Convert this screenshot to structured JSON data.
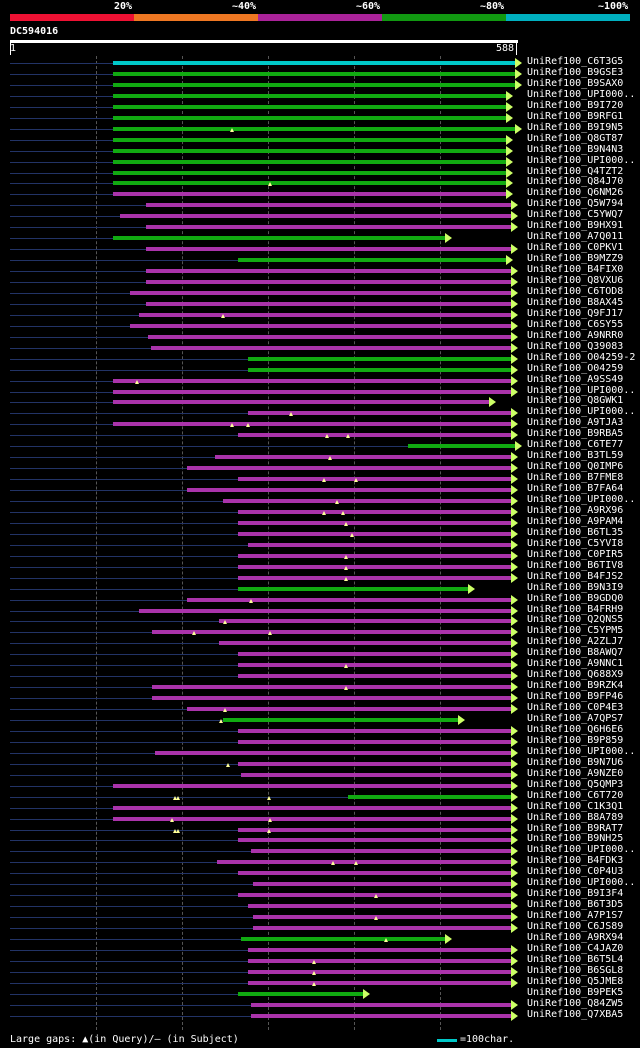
{
  "scale": {
    "bands": [
      {
        "label": "20%",
        "color": "#ee1133"
      },
      {
        "label": "~40%",
        "color": "#ee7722"
      },
      {
        "label": "~60%",
        "color": "#aa2299"
      },
      {
        "label": "~80%",
        "color": "#119911"
      },
      {
        "label": "~100%",
        "color": "#00b0c0"
      }
    ]
  },
  "query": {
    "name": "DC594016",
    "start": "1",
    "end": "588",
    "length": 588
  },
  "legend": {
    "text": "Large gaps: ▲(in Query)/– (in Subject)",
    "scale_text": "=100char.",
    "color": "#00c8c8"
  },
  "colors": {
    "cyan": "#00c8c8",
    "green": "#11aa11",
    "magenta": "#aa33aa",
    "base": "#223366",
    "arrow": "#ccff66",
    "gap": "#ffff99"
  },
  "hits": [
    {
      "label": "UniRef100_C6T3G5",
      "start": 120,
      "end": 588,
      "color": "cyan",
      "gaps": []
    },
    {
      "label": "UniRef100_B9GSE3",
      "start": 120,
      "end": 588,
      "color": "green",
      "gaps": []
    },
    {
      "label": "UniRef100_B9SAX0",
      "start": 120,
      "end": 588,
      "color": "green",
      "gaps": []
    },
    {
      "label": "UniRef100_UPI000..",
      "start": 120,
      "end": 578,
      "color": "green",
      "gaps": []
    },
    {
      "label": "UniRef100_B9I720",
      "start": 120,
      "end": 578,
      "color": "green",
      "gaps": []
    },
    {
      "label": "UniRef100_B9RFG1",
      "start": 120,
      "end": 578,
      "color": "green",
      "gaps": []
    },
    {
      "label": "UniRef100_B9I9N5",
      "start": 120,
      "end": 588,
      "color": "green",
      "gaps": [
        258
      ]
    },
    {
      "label": "UniRef100_Q8GT87",
      "start": 120,
      "end": 578,
      "color": "green",
      "gaps": []
    },
    {
      "label": "UniRef100_B9N4N3",
      "start": 120,
      "end": 578,
      "color": "green",
      "gaps": []
    },
    {
      "label": "UniRef100_UPI000..",
      "start": 120,
      "end": 578,
      "color": "green",
      "gaps": []
    },
    {
      "label": "UniRef100_Q4TZT2",
      "start": 120,
      "end": 578,
      "color": "green",
      "gaps": []
    },
    {
      "label": "UniRef100_Q84J70",
      "start": 120,
      "end": 578,
      "color": "green",
      "gaps": [
        302
      ]
    },
    {
      "label": "UniRef100_Q6NM26",
      "start": 120,
      "end": 578,
      "color": "magenta",
      "gaps": []
    },
    {
      "label": "UniRef100_Q5W794",
      "start": 158,
      "end": 583,
      "color": "magenta",
      "gaps": []
    },
    {
      "label": "UniRef100_C5YWQ7",
      "start": 128,
      "end": 583,
      "color": "magenta",
      "gaps": []
    },
    {
      "label": "UniRef100_B9HX91",
      "start": 158,
      "end": 583,
      "color": "magenta",
      "gaps": []
    },
    {
      "label": "UniRef100_A7Q011",
      "start": 120,
      "end": 507,
      "color": "green",
      "gaps": []
    },
    {
      "label": "UniRef100_C0PKV1",
      "start": 158,
      "end": 583,
      "color": "magenta",
      "gaps": []
    },
    {
      "label": "UniRef100_B9MZZ9",
      "start": 265,
      "end": 578,
      "color": "green",
      "gaps": []
    },
    {
      "label": "UniRef100_B4FIX0",
      "start": 158,
      "end": 583,
      "color": "magenta",
      "gaps": []
    },
    {
      "label": "UniRef100_Q8VXU6",
      "start": 158,
      "end": 583,
      "color": "magenta",
      "gaps": []
    },
    {
      "label": "UniRef100_C6TOD8",
      "start": 140,
      "end": 583,
      "color": "magenta",
      "gaps": []
    },
    {
      "label": "UniRef100_B8AX45",
      "start": 158,
      "end": 583,
      "color": "magenta",
      "gaps": []
    },
    {
      "label": "UniRef100_Q9FJ17",
      "start": 150,
      "end": 583,
      "color": "magenta",
      "gaps": [
        247
      ]
    },
    {
      "label": "UniRef100_C6SY55",
      "start": 140,
      "end": 583,
      "color": "magenta",
      "gaps": []
    },
    {
      "label": "UniRef100_A9NRR0",
      "start": 160,
      "end": 583,
      "color": "magenta",
      "gaps": []
    },
    {
      "label": "UniRef100_Q39083",
      "start": 164,
      "end": 583,
      "color": "magenta",
      "gaps": []
    },
    {
      "label": "UniRef100_O04259-2",
      "start": 276,
      "end": 583,
      "color": "green",
      "gaps": []
    },
    {
      "label": "UniRef100_O04259",
      "start": 276,
      "end": 583,
      "color": "green",
      "gaps": []
    },
    {
      "label": "UniRef100_A9SS49",
      "start": 120,
      "end": 583,
      "color": "magenta",
      "gaps": [
        148
      ]
    },
    {
      "label": "UniRef100_UPI000..",
      "start": 120,
      "end": 583,
      "color": "magenta",
      "gaps": []
    },
    {
      "label": "UniRef100_Q8GWK1",
      "start": 120,
      "end": 558,
      "color": "magenta",
      "gaps": []
    },
    {
      "label": "UniRef100_UPI000..",
      "start": 276,
      "end": 583,
      "color": "magenta",
      "gaps": [
        326
      ]
    },
    {
      "label": "UniRef100_A9TJA3",
      "start": 120,
      "end": 583,
      "color": "magenta",
      "gaps": [
        258,
        276
      ]
    },
    {
      "label": "UniRef100_B9RBA5",
      "start": 265,
      "end": 583,
      "color": "magenta",
      "gaps": [
        368,
        393
      ]
    },
    {
      "label": "UniRef100_C6TE77",
      "start": 463,
      "end": 588,
      "color": "green",
      "gaps": []
    },
    {
      "label": "UniRef100_B3TL59",
      "start": 238,
      "end": 583,
      "color": "magenta",
      "gaps": [
        372
      ]
    },
    {
      "label": "UniRef100_Q0IMP6",
      "start": 206,
      "end": 583,
      "color": "magenta",
      "gaps": []
    },
    {
      "label": "UniRef100_B7FME8",
      "start": 265,
      "end": 583,
      "color": "magenta",
      "gaps": [
        365,
        402
      ]
    },
    {
      "label": "UniRef100_B7FA64",
      "start": 206,
      "end": 583,
      "color": "magenta",
      "gaps": []
    },
    {
      "label": "UniRef100_UPI000..",
      "start": 247,
      "end": 583,
      "color": "magenta",
      "gaps": [
        380
      ]
    },
    {
      "label": "UniRef100_A9RX96",
      "start": 265,
      "end": 583,
      "color": "magenta",
      "gaps": [
        365,
        387
      ]
    },
    {
      "label": "UniRef100_A9PAM4",
      "start": 265,
      "end": 583,
      "color": "magenta",
      "gaps": [
        390
      ]
    },
    {
      "label": "UniRef100_B6TL35",
      "start": 265,
      "end": 583,
      "color": "magenta",
      "gaps": [
        398
      ]
    },
    {
      "label": "UniRef100_C5YVI8",
      "start": 276,
      "end": 583,
      "color": "magenta",
      "gaps": []
    },
    {
      "label": "UniRef100_C0PIR5",
      "start": 265,
      "end": 583,
      "color": "magenta",
      "gaps": [
        390
      ]
    },
    {
      "label": "UniRef100_B6TIV8",
      "start": 265,
      "end": 583,
      "color": "magenta",
      "gaps": [
        390
      ]
    },
    {
      "label": "UniRef100_B4FJS2",
      "start": 265,
      "end": 583,
      "color": "magenta",
      "gaps": [
        390
      ]
    },
    {
      "label": "UniRef100_B9N3I9",
      "start": 265,
      "end": 533,
      "color": "green",
      "gaps": []
    },
    {
      "label": "UniRef100_B9GDQ0",
      "start": 206,
      "end": 583,
      "color": "magenta",
      "gaps": [
        280
      ]
    },
    {
      "label": "UniRef100_B4FRH9",
      "start": 150,
      "end": 583,
      "color": "magenta",
      "gaps": []
    },
    {
      "label": "UniRef100_Q2QNS5",
      "start": 243,
      "end": 583,
      "color": "magenta",
      "gaps": [
        250
      ]
    },
    {
      "label": "UniRef100_C5YPM5",
      "start": 165,
      "end": 583,
      "color": "magenta",
      "gaps": [
        214,
        302
      ]
    },
    {
      "label": "UniRef100_A2ZLJ7",
      "start": 243,
      "end": 583,
      "color": "magenta",
      "gaps": []
    },
    {
      "label": "UniRef100_B8AWQ7",
      "start": 265,
      "end": 583,
      "color": "magenta",
      "gaps": []
    },
    {
      "label": "UniRef100_A9NNC1",
      "start": 265,
      "end": 583,
      "color": "magenta",
      "gaps": [
        390
      ]
    },
    {
      "label": "UniRef100_Q688X9",
      "start": 265,
      "end": 583,
      "color": "magenta",
      "gaps": []
    },
    {
      "label": "UniRef100_B9RZK4",
      "start": 165,
      "end": 583,
      "color": "magenta",
      "gaps": [
        390
      ]
    },
    {
      "label": "UniRef100_B9FP46",
      "start": 165,
      "end": 583,
      "color": "magenta",
      "gaps": []
    },
    {
      "label": "UniRef100_C0P4E3",
      "start": 206,
      "end": 583,
      "color": "magenta",
      "gaps": [
        250
      ]
    },
    {
      "label": "UniRef100_A7QPS7",
      "start": 247,
      "end": 522,
      "color": "green",
      "gaps": [
        245
      ]
    },
    {
      "label": "UniRef100_Q6H6E6",
      "start": 265,
      "end": 583,
      "color": "magenta",
      "gaps": []
    },
    {
      "label": "UniRef100_B9P859",
      "start": 265,
      "end": 583,
      "color": "magenta",
      "gaps": []
    },
    {
      "label": "UniRef100_UPI000..",
      "start": 168,
      "end": 583,
      "color": "magenta",
      "gaps": []
    },
    {
      "label": "UniRef100_B9N7U6",
      "start": 265,
      "end": 583,
      "color": "magenta",
      "gaps": [
        253
      ]
    },
    {
      "label": "UniRef100_A9NZE0",
      "start": 268,
      "end": 583,
      "color": "magenta",
      "gaps": []
    },
    {
      "label": "UniRef100_Q5QMP3",
      "start": 120,
      "end": 583,
      "color": "magenta",
      "gaps": []
    },
    {
      "label": "UniRef100_C6T720",
      "start": 393,
      "end": 583,
      "color": "green",
      "gaps": [
        192,
        195,
        301
      ]
    },
    {
      "label": "UniRef100_C1K3Q1",
      "start": 120,
      "end": 583,
      "color": "magenta",
      "gaps": []
    },
    {
      "label": "UniRef100_B8A789",
      "start": 120,
      "end": 583,
      "color": "magenta",
      "gaps": [
        188,
        302
      ]
    },
    {
      "label": "UniRef100_B9RAT7",
      "start": 265,
      "end": 583,
      "color": "magenta",
      "gaps": [
        192,
        195,
        301
      ]
    },
    {
      "label": "UniRef100_B9NH25",
      "start": 265,
      "end": 583,
      "color": "magenta",
      "gaps": []
    },
    {
      "label": "UniRef100_UPI000..",
      "start": 280,
      "end": 583,
      "color": "magenta",
      "gaps": []
    },
    {
      "label": "UniRef100_B4FDK3",
      "start": 240,
      "end": 583,
      "color": "magenta",
      "gaps": [
        375,
        402
      ]
    },
    {
      "label": "UniRef100_C0P4U3",
      "start": 265,
      "end": 583,
      "color": "magenta",
      "gaps": []
    },
    {
      "label": "UniRef100_UPI000..",
      "start": 282,
      "end": 583,
      "color": "magenta",
      "gaps": []
    },
    {
      "label": "UniRef100_B9I3F4",
      "start": 265,
      "end": 583,
      "color": "magenta",
      "gaps": [
        425
      ]
    },
    {
      "label": "UniRef100_B6T3D5",
      "start": 276,
      "end": 583,
      "color": "magenta",
      "gaps": []
    },
    {
      "label": "UniRef100_A7P1S7",
      "start": 282,
      "end": 583,
      "color": "magenta",
      "gaps": [
        425
      ]
    },
    {
      "label": "UniRef100_C6JS89",
      "start": 282,
      "end": 583,
      "color": "magenta",
      "gaps": []
    },
    {
      "label": "UniRef100_A9RX94",
      "start": 268,
      "end": 507,
      "color": "green",
      "gaps": [
        437
      ]
    },
    {
      "label": "UniRef100_C4JAZ0",
      "start": 276,
      "end": 583,
      "color": "magenta",
      "gaps": []
    },
    {
      "label": "UniRef100_B6T5L4",
      "start": 276,
      "end": 583,
      "color": "magenta",
      "gaps": [
        353
      ]
    },
    {
      "label": "UniRef100_B6SGL8",
      "start": 276,
      "end": 583,
      "color": "magenta",
      "gaps": [
        353
      ]
    },
    {
      "label": "UniRef100_Q5JME8",
      "start": 276,
      "end": 583,
      "color": "magenta",
      "gaps": [
        353
      ]
    },
    {
      "label": "UniRef100_B9PEK5",
      "start": 265,
      "end": 411,
      "color": "green",
      "gaps": []
    },
    {
      "label": "UniRef100_Q84ZW5",
      "start": 280,
      "end": 583,
      "color": "magenta",
      "gaps": []
    },
    {
      "label": "UniRef100_Q7XBA5",
      "start": 280,
      "end": 583,
      "color": "magenta",
      "gaps": []
    }
  ]
}
